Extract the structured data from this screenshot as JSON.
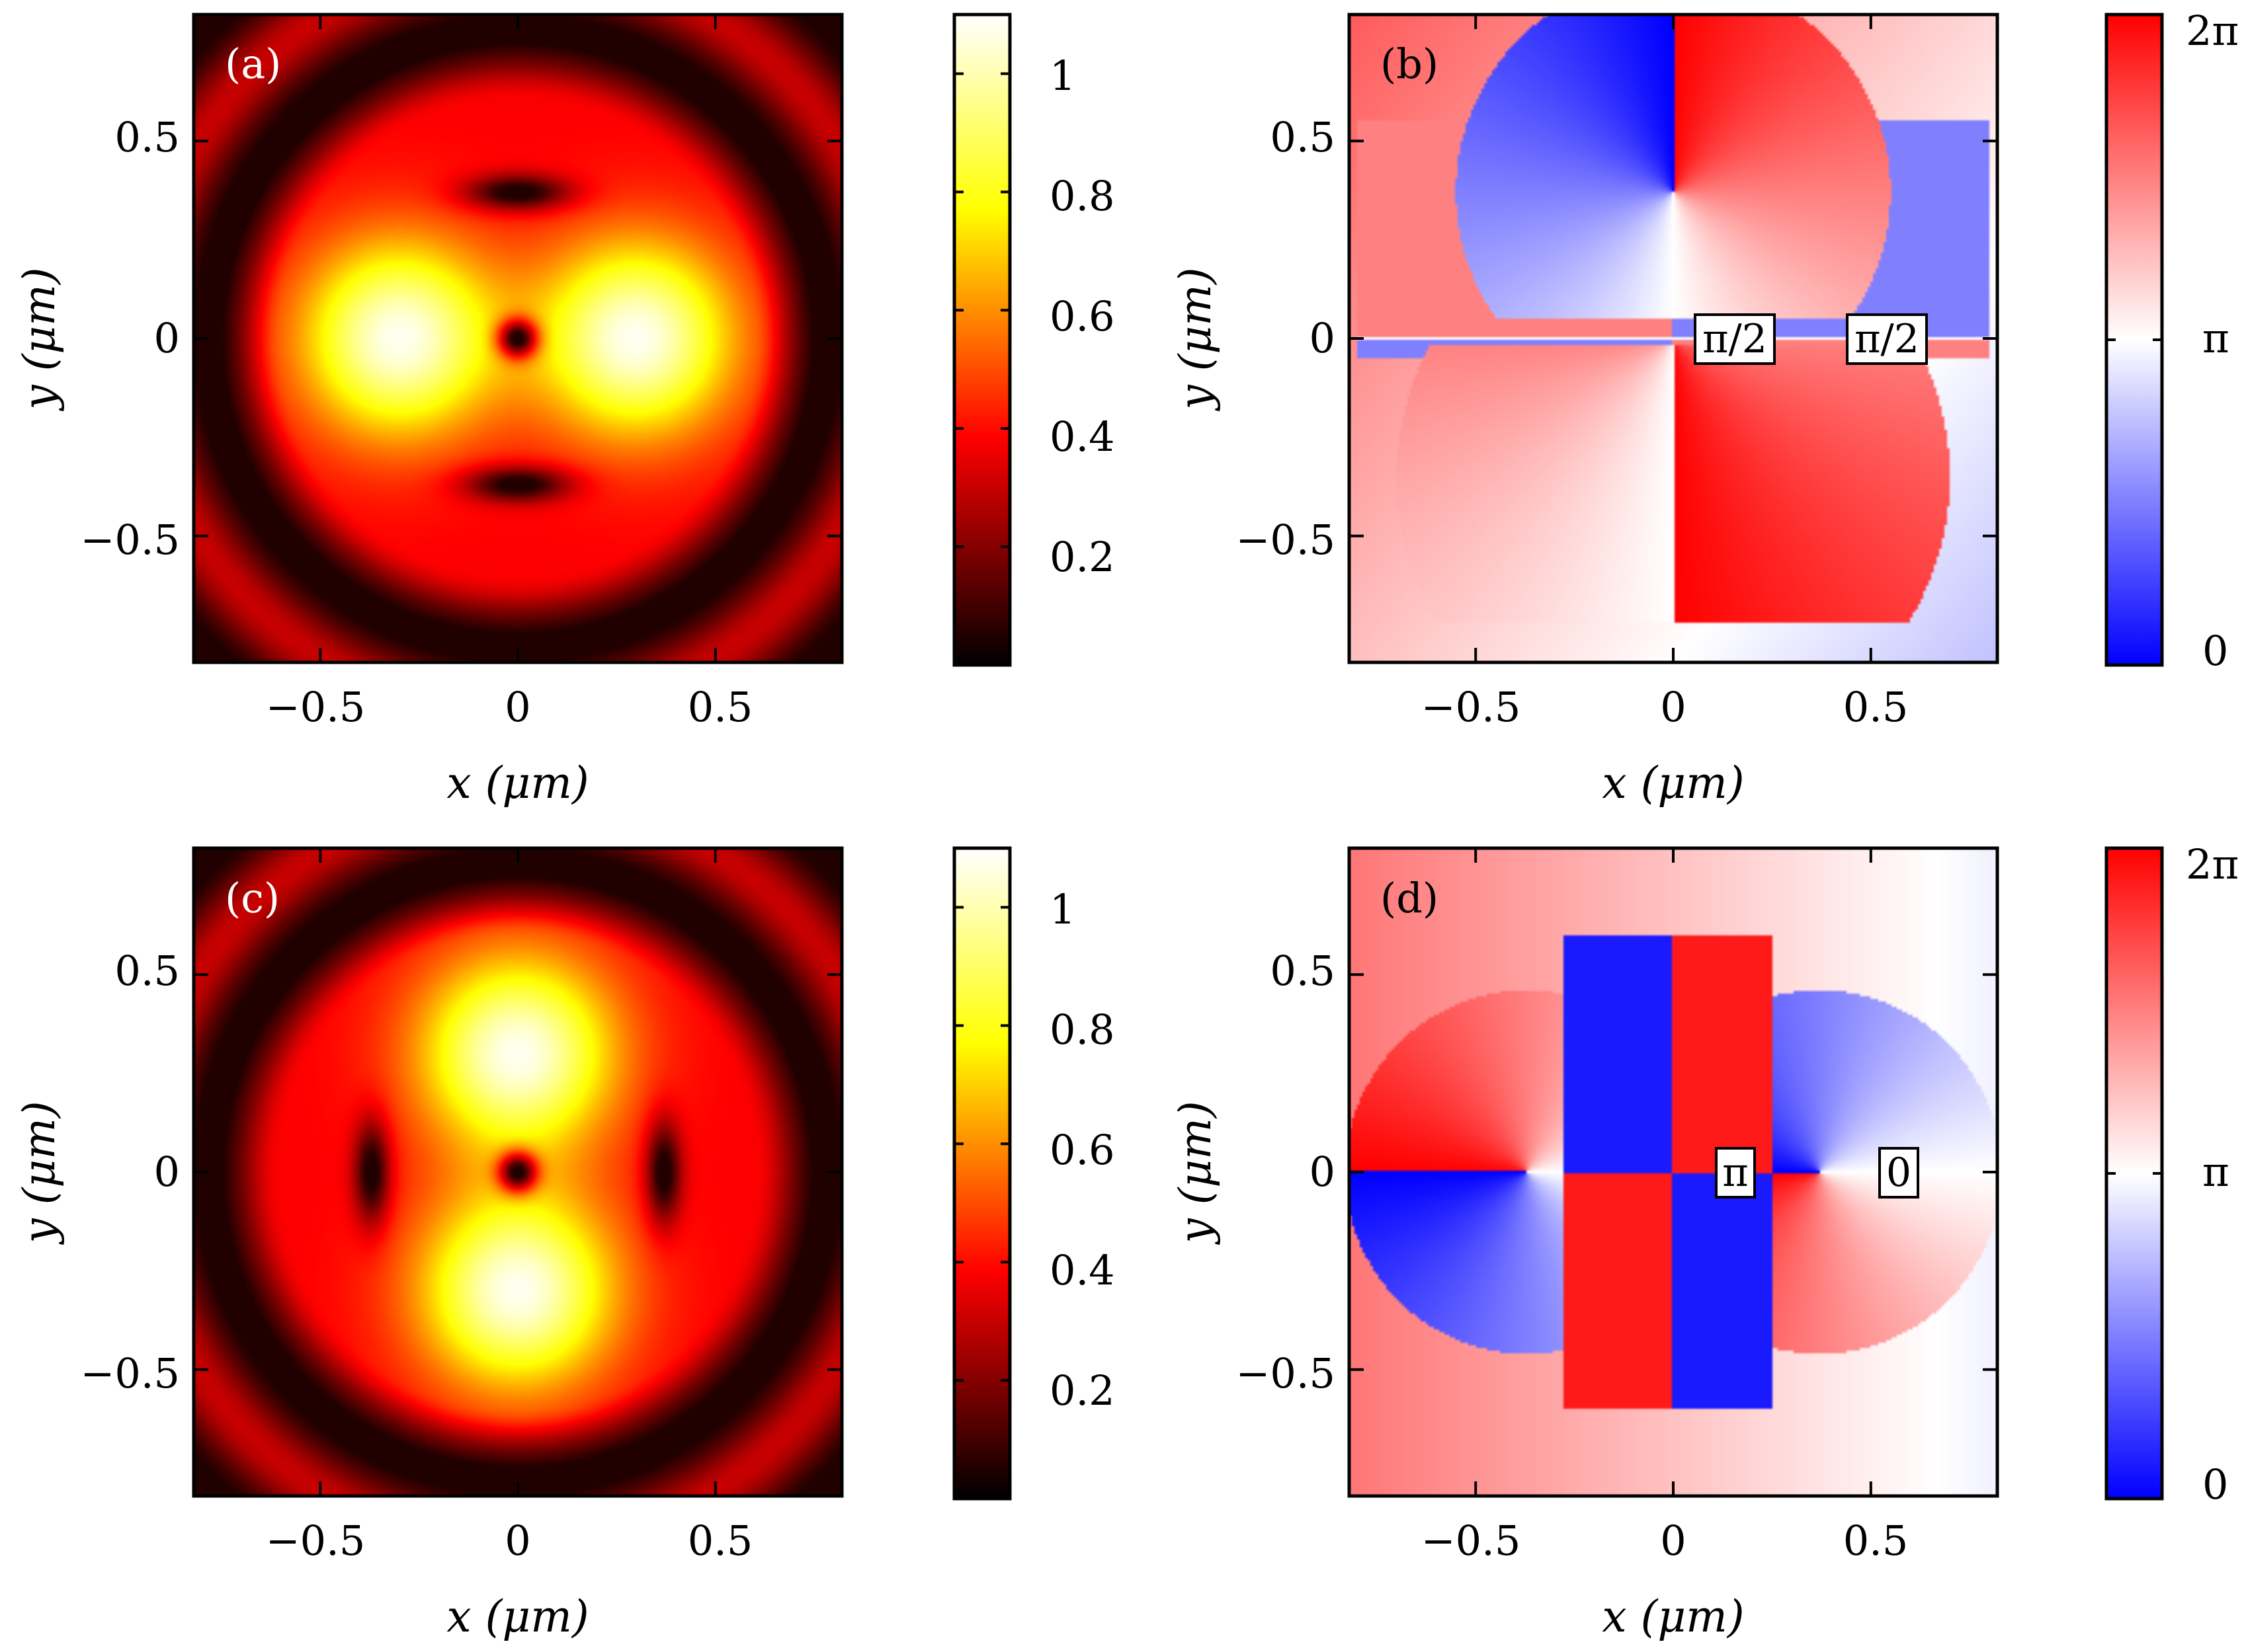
{
  "chart_data": [
    {
      "type": "heatmap",
      "panel": "(a)",
      "quantity": "intensity",
      "xlabel": "x (μm)",
      "ylabel": "y (μm)",
      "xlim": [
        -0.82,
        0.82
      ],
      "ylim": [
        -0.82,
        0.82
      ],
      "xticks": [
        -0.5,
        0,
        0.5
      ],
      "xtick_labels": [
        "−0.5",
        "0",
        "0.5"
      ],
      "yticks": [
        -0.5,
        0,
        0.5
      ],
      "ytick_labels": [
        "−0.5",
        "0",
        "0.5"
      ],
      "features": {
        "central_null": [
          0,
          0
        ],
        "maxima": [
          [
            -0.3,
            0
          ],
          [
            0.3,
            0
          ]
        ],
        "side_nulls": [
          [
            0,
            0.37
          ],
          [
            0,
            -0.37
          ]
        ],
        "ring_null_radius": 0.78
      },
      "colorbar": {
        "colormap": "hot",
        "range": [
          0,
          1.1
        ],
        "ticks": [
          0.2,
          0.4,
          0.6,
          0.8,
          1
        ],
        "tick_labels": [
          "0.2",
          "0.4",
          "0.6",
          "0.8",
          "1"
        ]
      }
    },
    {
      "type": "heatmap",
      "panel": "(b)",
      "quantity": "phase",
      "xlabel": "x (μm)",
      "ylabel": "y (μm)",
      "xlim": [
        -0.82,
        0.82
      ],
      "ylim": [
        -0.82,
        0.82
      ],
      "xticks": [
        -0.5,
        0,
        0.5
      ],
      "xtick_labels": [
        "−0.5",
        "0",
        "0.5"
      ],
      "yticks": [
        -0.5,
        0,
        0.5
      ],
      "ytick_labels": [
        "−0.5",
        "0",
        "0.5"
      ],
      "annotations": [
        {
          "text": "π/2",
          "x": 0.15,
          "y": 0
        },
        {
          "text": "π/2",
          "x": 0.53,
          "y": 0
        }
      ],
      "colorbar": {
        "colormap": "blue-white-red",
        "range": [
          0,
          6.2832
        ],
        "ticks": [
          0,
          3.1416,
          6.2832
        ],
        "tick_labels": [
          "0",
          "π",
          "2π"
        ]
      }
    },
    {
      "type": "heatmap",
      "panel": "(c)",
      "quantity": "intensity",
      "xlabel": "x (μm)",
      "ylabel": "y (μm)",
      "xlim": [
        -0.82,
        0.82
      ],
      "ylim": [
        -0.82,
        0.82
      ],
      "xticks": [
        -0.5,
        0,
        0.5
      ],
      "xtick_labels": [
        "−0.5",
        "0",
        "0.5"
      ],
      "yticks": [
        -0.5,
        0,
        0.5
      ],
      "ytick_labels": [
        "−0.5",
        "0",
        "0.5"
      ],
      "features": {
        "central_null": [
          0,
          0
        ],
        "maxima": [
          [
            0,
            0.3
          ],
          [
            0,
            -0.3
          ]
        ],
        "side_nulls": [
          [
            -0.37,
            0
          ],
          [
            0.37,
            0
          ]
        ],
        "ring_null_radius": 0.78
      },
      "colorbar": {
        "colormap": "hot",
        "range": [
          0,
          1.1
        ],
        "ticks": [
          0.2,
          0.4,
          0.6,
          0.8,
          1
        ],
        "tick_labels": [
          "0.2",
          "0.4",
          "0.6",
          "0.8",
          "1"
        ]
      }
    },
    {
      "type": "heatmap",
      "panel": "(d)",
      "quantity": "phase",
      "xlabel": "x (μm)",
      "ylabel": "y (μm)",
      "xlim": [
        -0.82,
        0.82
      ],
      "ylim": [
        -0.82,
        0.82
      ],
      "xticks": [
        -0.5,
        0,
        0.5
      ],
      "xtick_labels": [
        "−0.5",
        "0",
        "0.5"
      ],
      "yticks": [
        -0.5,
        0,
        0.5
      ],
      "ytick_labels": [
        "−0.5",
        "0",
        "0.5"
      ],
      "annotations": [
        {
          "text": "π",
          "x": 0.15,
          "y": 0
        },
        {
          "text": "0",
          "x": 0.57,
          "y": 0
        }
      ],
      "colorbar": {
        "colormap": "blue-white-red",
        "range": [
          0,
          6.2832
        ],
        "ticks": [
          0,
          3.1416,
          6.2832
        ],
        "tick_labels": [
          "0",
          "π",
          "2π"
        ]
      }
    }
  ]
}
